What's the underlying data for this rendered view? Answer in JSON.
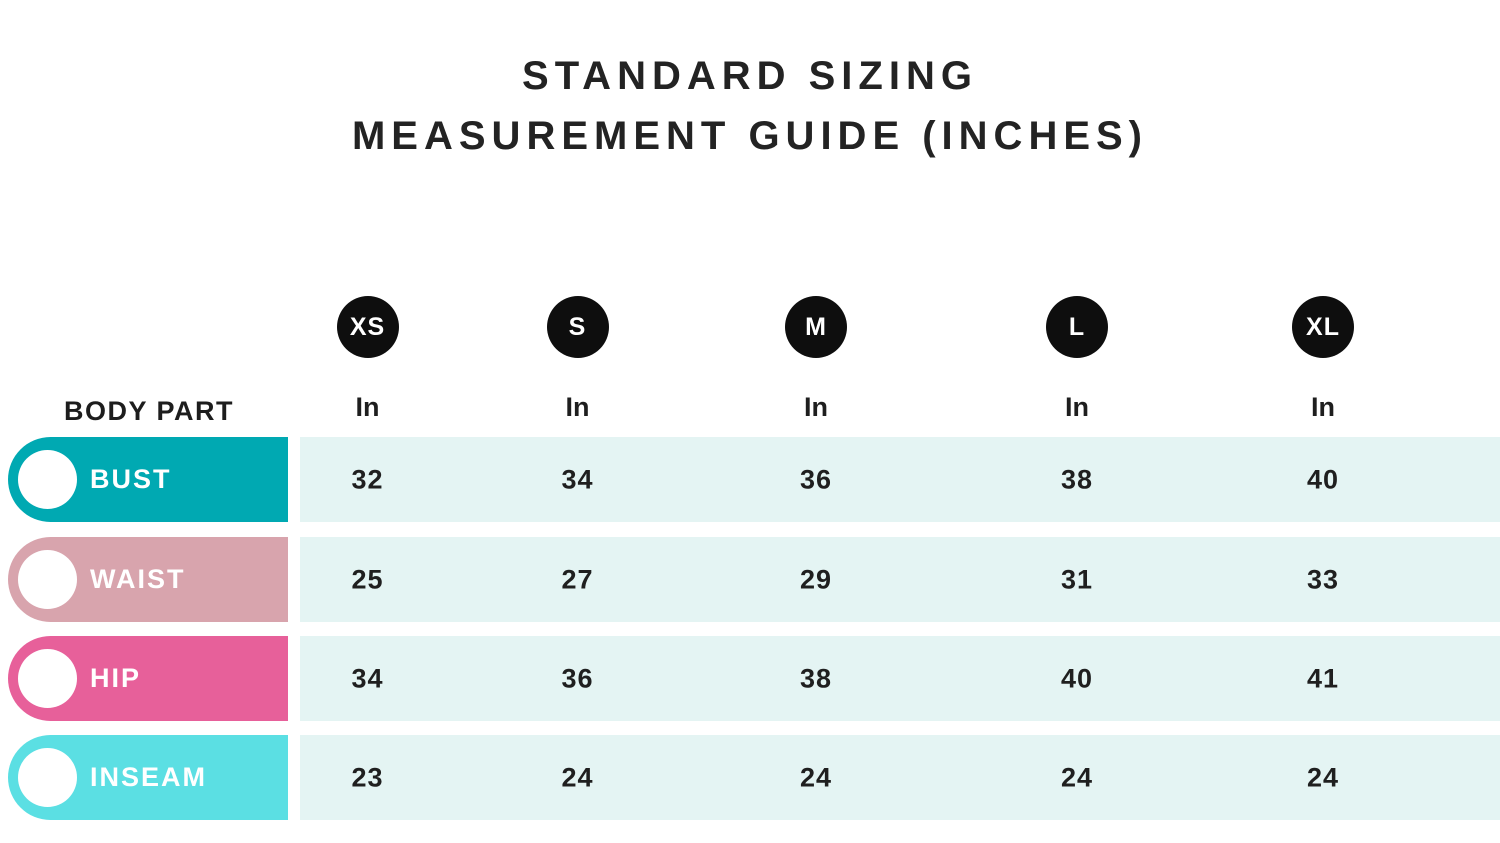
{
  "title": {
    "line1": "STANDARD SIZING",
    "line2": "MEASUREMENT GUIDE (INCHES)"
  },
  "colors": {
    "badge_black": "#0e0e0e",
    "row_background": "#e4f4f3",
    "bust_teal": "#00a9b2",
    "waist_rose": "#d8a4ad",
    "hip_pink": "#e7609a",
    "inseam_cyan": "#5bdfe3",
    "text_dark": "#232323"
  },
  "table": {
    "body_part_header": "BODY PART",
    "sizes": [
      {
        "label": "XS",
        "unit": "In"
      },
      {
        "label": "S",
        "unit": "In"
      },
      {
        "label": "M",
        "unit": "In"
      },
      {
        "label": "L",
        "unit": "In"
      },
      {
        "label": "XL",
        "unit": "In"
      }
    ],
    "rows": [
      {
        "label": "BUST",
        "color": "#00a9b2",
        "values": [
          "32",
          "34",
          "36",
          "38",
          "40"
        ]
      },
      {
        "label": "WAIST",
        "color": "#d8a4ad",
        "values": [
          "25",
          "27",
          "29",
          "31",
          "33"
        ]
      },
      {
        "label": "HIP",
        "color": "#e7609a",
        "values": [
          "34",
          "36",
          "38",
          "40",
          "41"
        ]
      },
      {
        "label": "INSEAM",
        "color": "#5bdfe3",
        "values": [
          "23",
          "24",
          "24",
          "24",
          "24"
        ]
      }
    ]
  },
  "chart_data": {
    "type": "table",
    "title": "STANDARD SIZING MEASUREMENT GUIDE (INCHES)",
    "columns": [
      "BODY PART",
      "XS (In)",
      "S (In)",
      "M (In)",
      "L (In)",
      "XL (In)"
    ],
    "rows": [
      [
        "BUST",
        32,
        34,
        36,
        38,
        40
      ],
      [
        "WAIST",
        25,
        27,
        29,
        31,
        33
      ],
      [
        "HIP",
        34,
        36,
        38,
        40,
        41
      ],
      [
        "INSEAM",
        23,
        24,
        24,
        24,
        24
      ]
    ]
  }
}
